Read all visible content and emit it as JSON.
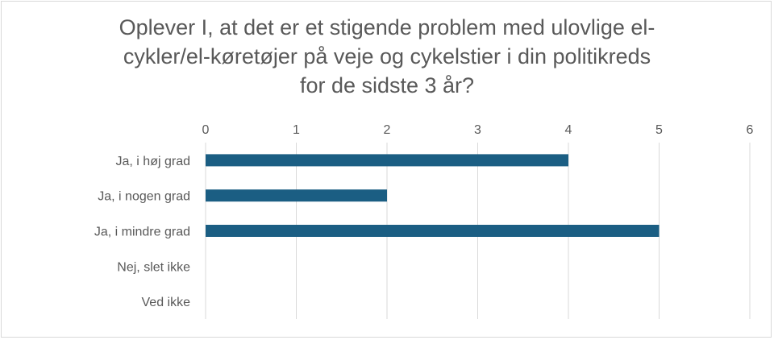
{
  "chart_data": {
    "type": "bar",
    "orientation": "horizontal",
    "title_lines": [
      "Oplever I, at det er et stigende problem med ulovlige el-",
      "cykler/el-køretøjer på veje og cykelstier i din politikreds",
      "for de sidste 3 år?"
    ],
    "categories": [
      "Ja, i høj grad",
      "Ja, i nogen grad",
      "Ja, i mindre grad",
      "Nej, slet ikke",
      "Ved ikke"
    ],
    "values": [
      4,
      2,
      5,
      0,
      0
    ],
    "xlim": [
      0,
      6
    ],
    "xticks": [
      "0",
      "1",
      "2",
      "3",
      "4",
      "5",
      "6"
    ],
    "xaxis_position": "top",
    "grid": true,
    "bar_color": "#1b5e83",
    "grid_color": "#d9d9d9"
  }
}
